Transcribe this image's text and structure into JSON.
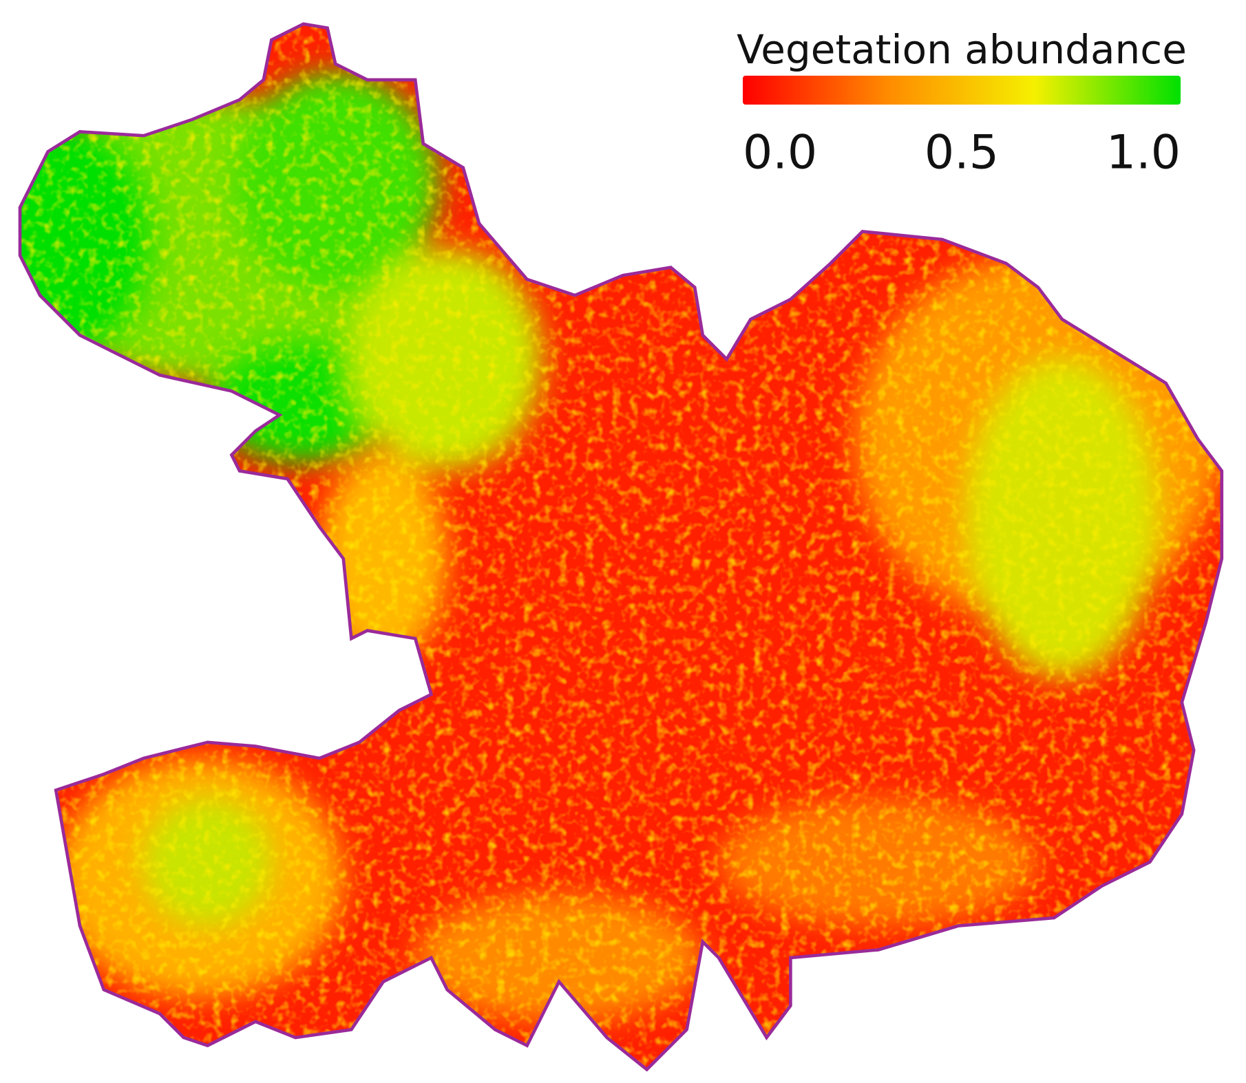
{
  "legend": {
    "title": "Vegetation abundance",
    "ticks": [
      {
        "value": 0,
        "label": "0.0"
      },
      {
        "value": 0.5,
        "label": "0.5"
      },
      {
        "value": 1,
        "label": "1.0"
      }
    ],
    "colors": [
      "#ff0000",
      "#ff8c00",
      "#f5f000",
      "#00e000"
    ]
  }
}
